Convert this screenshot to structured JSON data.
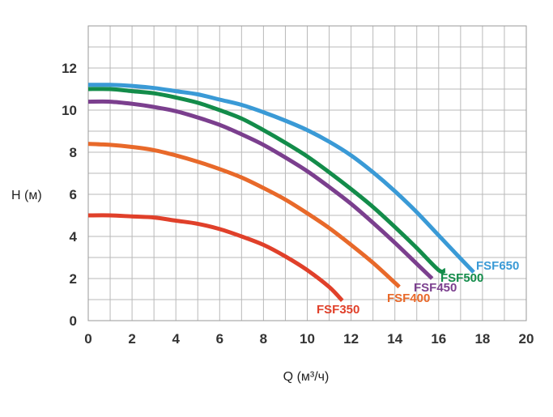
{
  "chart_data": {
    "type": "line",
    "title": "",
    "xlabel": "Q (м³/ч)",
    "ylabel": "H (м)",
    "xlim": [
      0,
      20
    ],
    "ylim": [
      0,
      14
    ],
    "xticks": [
      "0",
      "2",
      "4",
      "6",
      "8",
      "10",
      "12",
      "14",
      "16",
      "18",
      "20"
    ],
    "yticks": [
      "0",
      "2",
      "4",
      "6",
      "8",
      "10",
      "12"
    ],
    "grid": true,
    "series": [
      {
        "name": "FSF350",
        "color": "#e0402a",
        "x": [
          0,
          1,
          2,
          3,
          4,
          5,
          6,
          7,
          8,
          9,
          10,
          11,
          11.6
        ],
        "y": [
          5.0,
          5.0,
          4.95,
          4.9,
          4.75,
          4.6,
          4.35,
          4.0,
          3.6,
          3.05,
          2.4,
          1.6,
          0.95
        ]
      },
      {
        "name": "FSF400",
        "color": "#e8692a",
        "x": [
          0,
          1,
          2,
          3,
          4,
          5,
          6,
          7,
          8,
          9,
          10,
          11,
          12,
          13,
          14,
          14.2
        ],
        "y": [
          8.4,
          8.35,
          8.25,
          8.1,
          7.85,
          7.55,
          7.2,
          6.8,
          6.3,
          5.75,
          5.1,
          4.4,
          3.6,
          2.75,
          1.8,
          1.6
        ]
      },
      {
        "name": "FSF450",
        "color": "#7b3f8e",
        "x": [
          0,
          1,
          2,
          3,
          4,
          5,
          6,
          7,
          8,
          9,
          10,
          11,
          12,
          13,
          14,
          15,
          15.7
        ],
        "y": [
          10.4,
          10.4,
          10.3,
          10.15,
          9.95,
          9.65,
          9.3,
          8.85,
          8.35,
          7.75,
          7.1,
          6.35,
          5.55,
          4.65,
          3.7,
          2.7,
          2.0
        ]
      },
      {
        "name": "FSF500",
        "color": "#138c4a",
        "x": [
          0,
          1,
          2,
          3,
          4,
          5,
          6,
          7,
          8,
          9,
          10,
          11,
          12,
          13,
          14,
          15,
          16,
          16.3
        ],
        "y": [
          11.0,
          11.0,
          10.9,
          10.8,
          10.6,
          10.35,
          10.0,
          9.6,
          9.05,
          8.45,
          7.8,
          7.05,
          6.25,
          5.4,
          4.45,
          3.45,
          2.4,
          2.4
        ]
      },
      {
        "name": "FSF650",
        "color": "#3a9ad6",
        "x": [
          0,
          1,
          2,
          3,
          4,
          5,
          6,
          7,
          8,
          9,
          10,
          11,
          12,
          13,
          14,
          15,
          16,
          17,
          17.6
        ],
        "y": [
          11.2,
          11.2,
          11.15,
          11.05,
          10.9,
          10.75,
          10.5,
          10.25,
          9.9,
          9.5,
          9.05,
          8.5,
          7.85,
          7.05,
          6.15,
          5.15,
          4.05,
          2.95,
          2.3
        ]
      }
    ]
  }
}
